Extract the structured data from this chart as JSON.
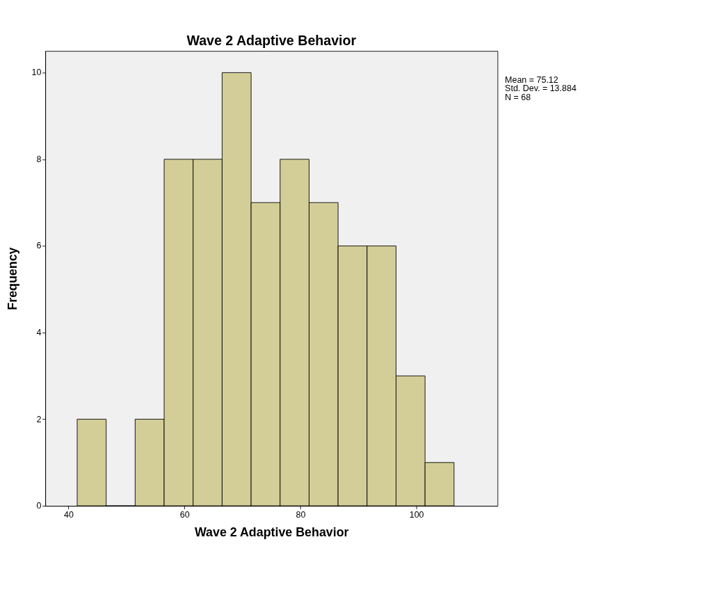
{
  "chart_data": {
    "type": "histogram",
    "title": "Wave 2 Adaptive Behavior",
    "xlabel": "Wave 2 Adaptive Behavior",
    "ylabel": "Frequency",
    "bins": [
      41.5,
      46.5,
      51.5,
      56.5,
      61.5,
      66.5,
      71.5,
      76.5,
      81.5,
      86.5,
      91.5,
      96.5,
      101.5,
      106.5
    ],
    "values": [
      2,
      0,
      2,
      8,
      8,
      10,
      7,
      8,
      7,
      6,
      6,
      3,
      1
    ],
    "color": "#d3ce97",
    "xlim": [
      36,
      114
    ],
    "xticks": [
      40,
      60,
      80,
      100
    ],
    "ylim": [
      0,
      10.5
    ],
    "yticks": [
      0,
      2,
      4,
      6,
      8,
      10
    ],
    "grid": false,
    "annotations": [
      "Mean = 75.12",
      "Std. Dev. = 13.884",
      "N = 68"
    ]
  }
}
